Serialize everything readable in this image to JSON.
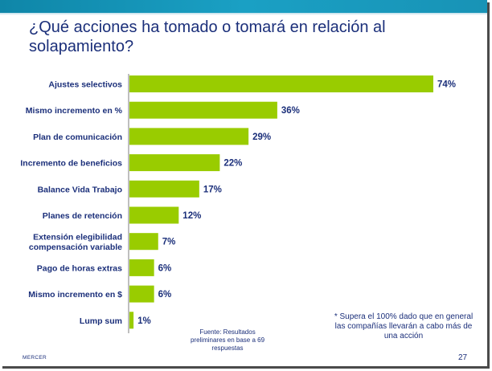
{
  "slide": {
    "title_lines": [
      "¿Qué acciones ha tomado o tomará en relación al",
      "solapamiento?"
    ],
    "note_lines": [
      "* Supera el 100% dado que en general",
      "las compañías llevarán a cabo más de",
      "una acción"
    ],
    "source_lines": [
      "Fuente: Resultados",
      "preliminares en base a 69",
      "respuestas"
    ],
    "logo": "MERCER",
    "page_number": "27",
    "colors": {
      "bar": "#99cc00",
      "text": "#1b2f7a",
      "accent_bar": "#1aa0c4"
    }
  },
  "chart_data": {
    "type": "bar",
    "orientation": "horizontal",
    "title": "¿Qué acciones ha tomado o tomará en relación al solapamiento?",
    "categories": [
      [
        "Ajustes selectivos"
      ],
      [
        "Mismo incremento en %"
      ],
      [
        "Plan de comunicación"
      ],
      [
        "Incremento de beneficios"
      ],
      [
        "Balance Vida Trabajo"
      ],
      [
        "Planes de retención"
      ],
      [
        "Extensión elegibilidad",
        "compensación variable"
      ],
      [
        "Pago de horas extras"
      ],
      [
        "Mismo incremento en $"
      ],
      [
        "Lump sum"
      ]
    ],
    "values": [
      74,
      36,
      29,
      22,
      17,
      12,
      7,
      6,
      6,
      1
    ],
    "value_labels": [
      "74%",
      "36%",
      "29%",
      "22%",
      "17%",
      "12%",
      "7%",
      "6%",
      "6%",
      "1%"
    ],
    "xlim": [
      0,
      74
    ],
    "unit": "%"
  }
}
